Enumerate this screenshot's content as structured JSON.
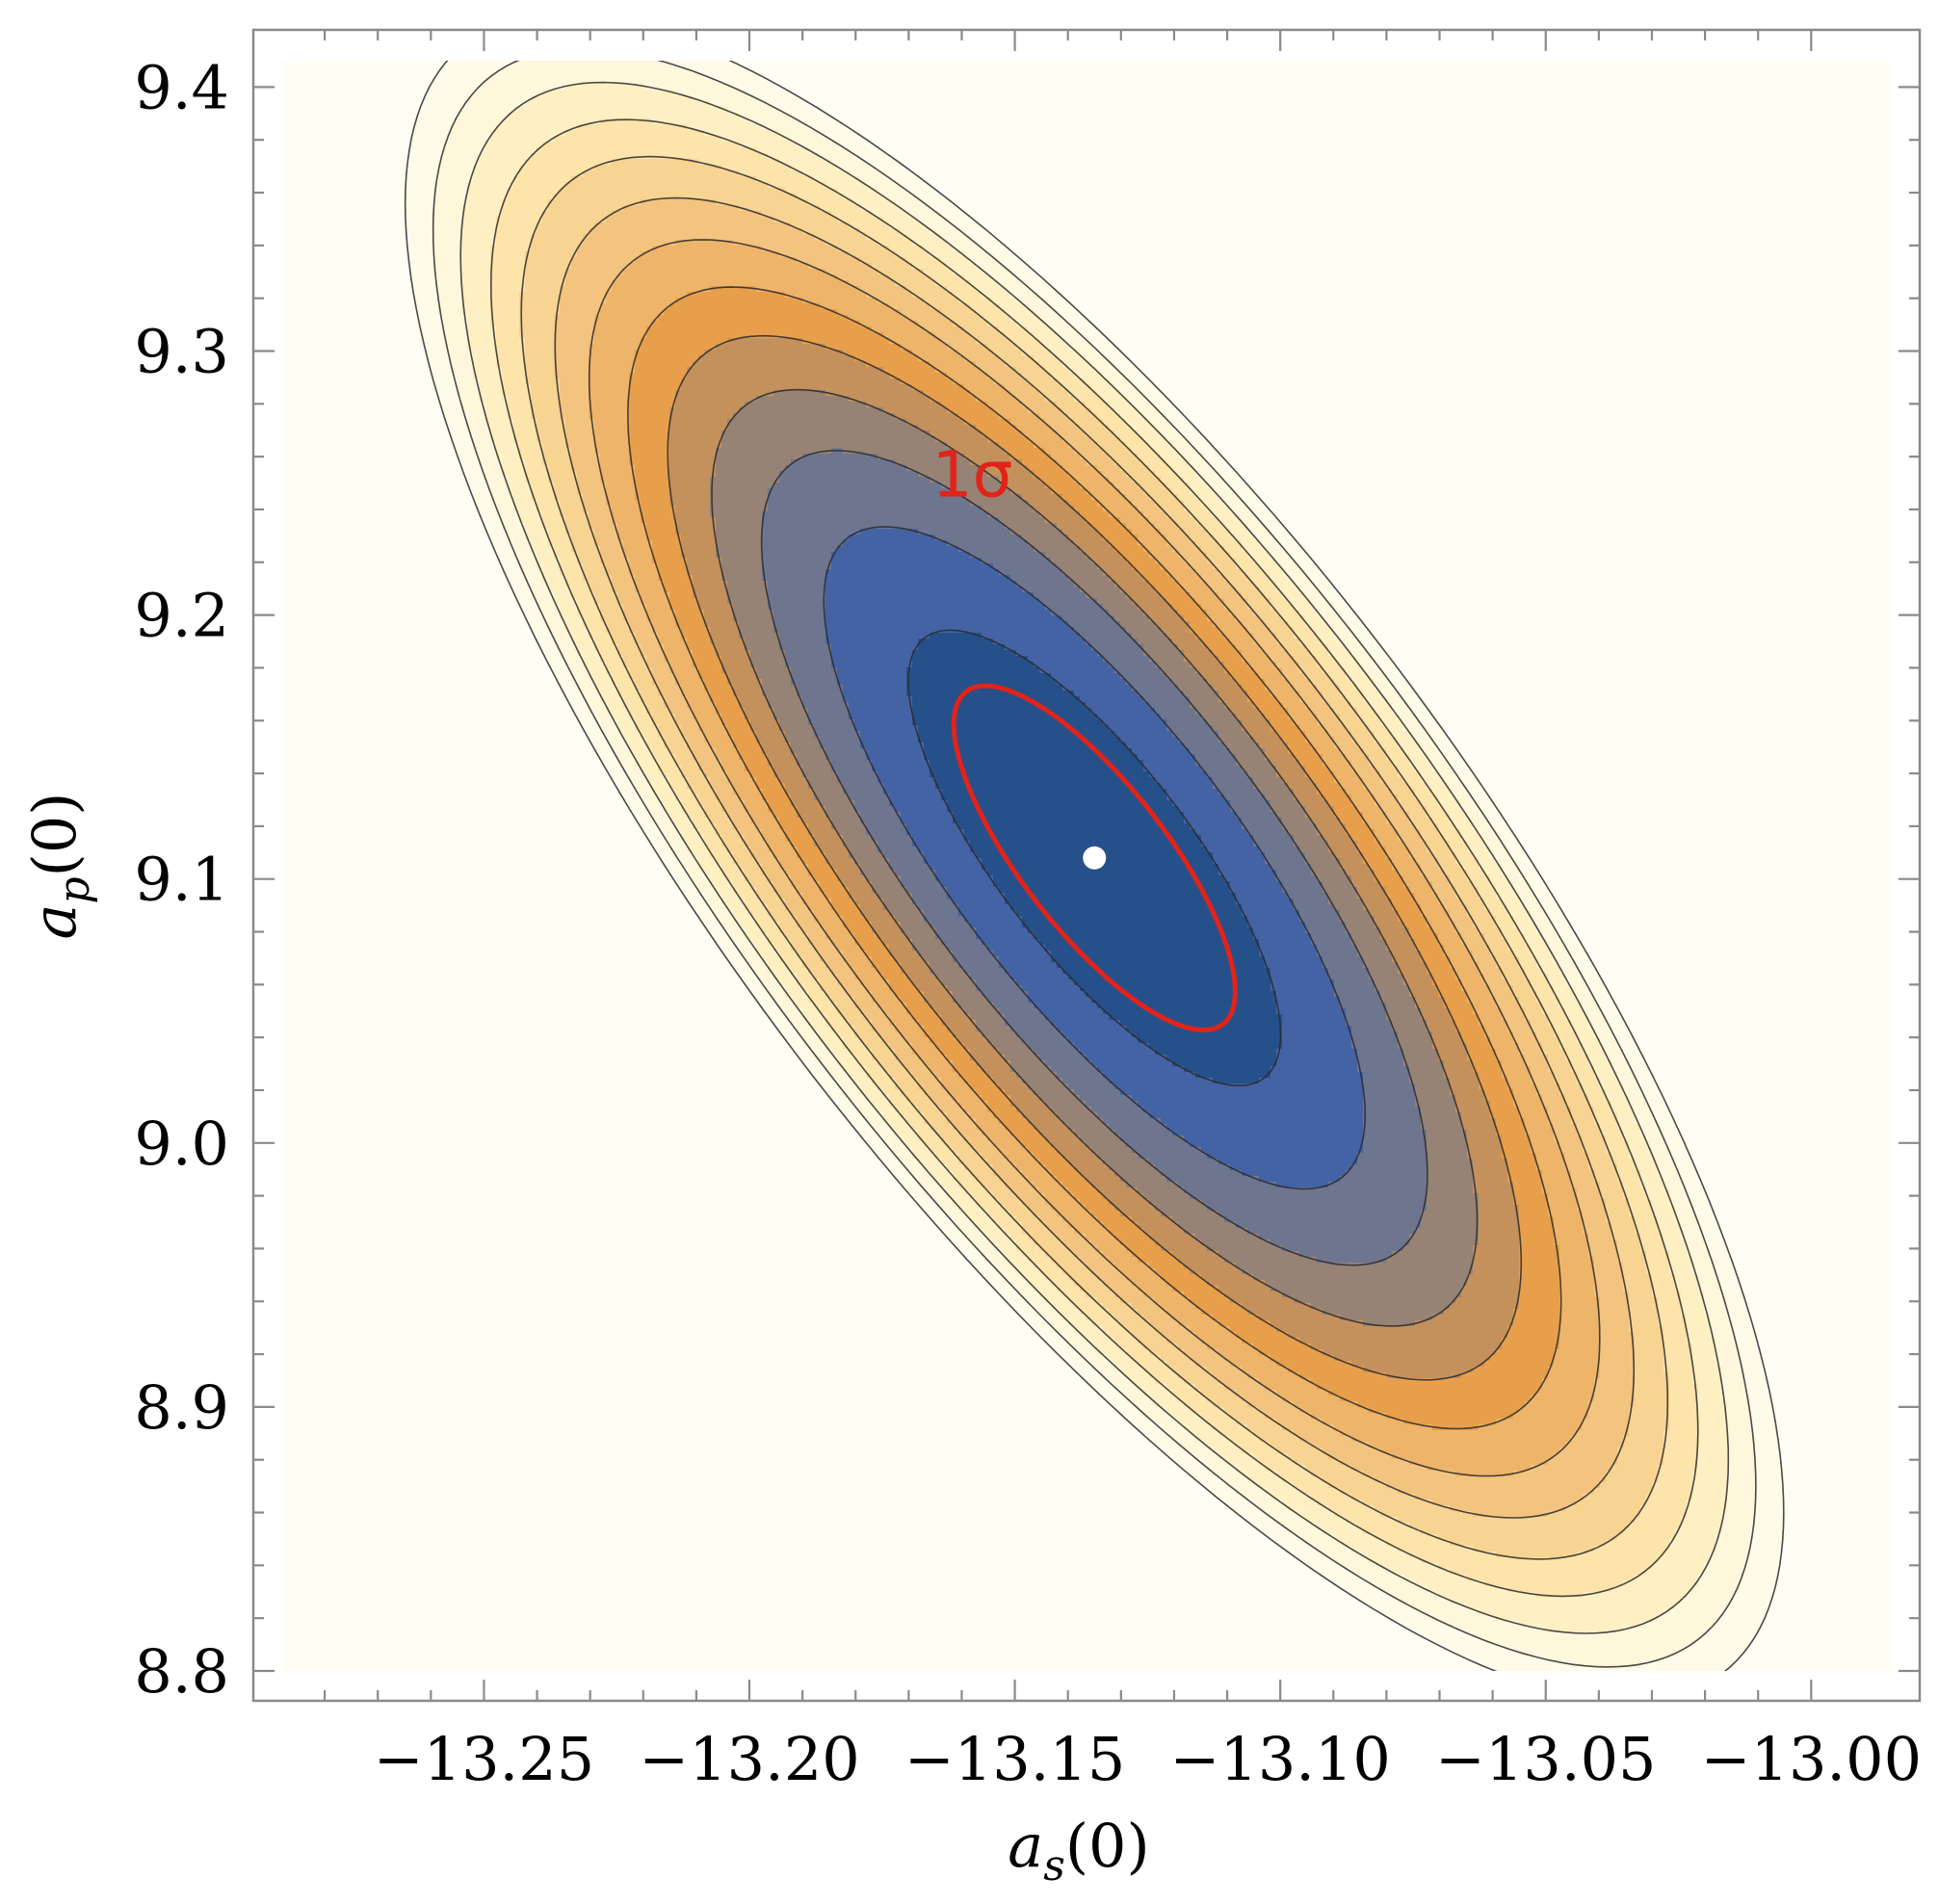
{
  "chart_data": {
    "type": "contour",
    "x_axis": {
      "label_base": "a",
      "label_sub": "s",
      "label_arg": "(0)",
      "lim": [
        -13.288,
        -12.985
      ],
      "ticks": [
        -13.25,
        -13.2,
        -13.15,
        -13.1,
        -13.05,
        -13.0
      ],
      "tick_labels": [
        "−13.25",
        "−13.20",
        "−13.15",
        "−13.10",
        "−13.05",
        "−13.00"
      ]
    },
    "y_axis": {
      "label_base": "a",
      "label_sub": "p",
      "label_arg": "(0)",
      "lim": [
        8.8,
        9.41
      ],
      "ticks": [
        8.8,
        8.9,
        9.0,
        9.1,
        9.2,
        9.3,
        9.4
      ],
      "tick_labels": [
        "8.8",
        "8.9",
        "9.0",
        "9.1",
        "9.2",
        "9.3",
        "9.4"
      ]
    },
    "best_fit": {
      "x": -13.135,
      "y": 9.108,
      "color": "#ffffff"
    },
    "sigma_contour": {
      "label": "1σ",
      "level": 1,
      "color": "#e2231a",
      "label_position": {
        "x": -13.158,
        "y": 9.245
      }
    },
    "contour_levels": [
      1.75,
      3.7,
      5.6,
      7.4,
      9.2,
      11.0,
      12.9,
      14.7,
      16.6,
      18.4,
      20.3,
      22.1,
      24.0
    ],
    "fill_colors": [
      "#26508a",
      "#4463a4",
      "#6e758f",
      "#968375",
      "#c4915d",
      "#e89f4b",
      "#eeb469",
      "#f3c47f",
      "#f8d493",
      "#fde4aa",
      "#fff0c4",
      "#fff7dc",
      "#fffbe9",
      "#fffdf4"
    ],
    "model": {
      "center": [
        -13.135,
        9.108
      ],
      "sigma_x": 0.0265,
      "sigma_y": 0.0652,
      "rho": -0.776
    },
    "grid": false,
    "legend": "none"
  }
}
